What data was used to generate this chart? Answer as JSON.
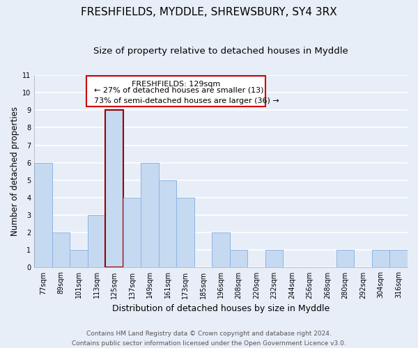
{
  "title": "FRESHFIELDS, MYDDLE, SHREWSBURY, SY4 3RX",
  "subtitle": "Size of property relative to detached houses in Myddle",
  "xlabel": "Distribution of detached houses by size in Myddle",
  "ylabel": "Number of detached properties",
  "categories": [
    "77sqm",
    "89sqm",
    "101sqm",
    "113sqm",
    "125sqm",
    "137sqm",
    "149sqm",
    "161sqm",
    "173sqm",
    "185sqm",
    "196sqm",
    "208sqm",
    "220sqm",
    "232sqm",
    "244sqm",
    "256sqm",
    "268sqm",
    "280sqm",
    "292sqm",
    "304sqm",
    "316sqm"
  ],
  "values": [
    6,
    2,
    1,
    3,
    9,
    4,
    6,
    5,
    4,
    0,
    2,
    1,
    0,
    1,
    0,
    0,
    0,
    1,
    0,
    1,
    1
  ],
  "bar_color": "#c5d9f1",
  "bar_edge_color": "#8db4e2",
  "highlight_bar_index": 4,
  "highlight_bar_edge_color": "#990000",
  "highlight_bar_edge_width": 1.5,
  "annotation_title": "FRESHFIELDS: 129sqm",
  "annotation_line1": "← 27% of detached houses are smaller (13)",
  "annotation_line2": "73% of semi-detached houses are larger (36) →",
  "annotation_box_edge_color": "#cc0000",
  "ylim": [
    0,
    11
  ],
  "yticks": [
    0,
    1,
    2,
    3,
    4,
    5,
    6,
    7,
    8,
    9,
    10,
    11
  ],
  "footer_line1": "Contains HM Land Registry data © Crown copyright and database right 2024.",
  "footer_line2": "Contains public sector information licensed under the Open Government Licence v3.0.",
  "background_color": "#e8eef8",
  "plot_bg_color": "#e8eef8",
  "grid_color": "#ffffff",
  "title_fontsize": 11,
  "subtitle_fontsize": 9.5,
  "xlabel_fontsize": 9,
  "ylabel_fontsize": 8.5,
  "tick_fontsize": 7,
  "annotation_fontsize": 8,
  "footer_fontsize": 6.5
}
